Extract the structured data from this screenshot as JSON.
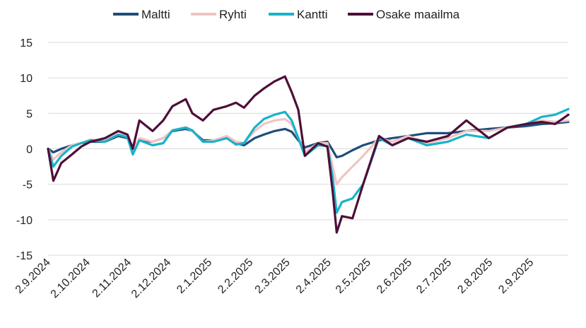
{
  "chart_data": {
    "type": "line",
    "title": "",
    "xlabel": "",
    "ylabel": "",
    "ylim": [
      -15,
      15
    ],
    "y_ticks": [
      15,
      10,
      5,
      0,
      -5,
      -10,
      -15
    ],
    "y_tick_labels": [
      "15",
      "10",
      "5",
      "0",
      "-5",
      "-10",
      "-15"
    ],
    "x_tick_labels": [
      "2.9.2024",
      "2.10.2024",
      "2.11.2024",
      "2.12.2024",
      "2.1.2025",
      "2.2.2025",
      "2.3.2025",
      "2.4.2025",
      "2.5.2025",
      "2.6.2025",
      "2.7.2025",
      "2.8.2025",
      "2.9.2025"
    ],
    "x_range": [
      "2024-09-02",
      "2025-09-30"
    ],
    "grid": "horizontal",
    "legend_position": "top",
    "series": [
      {
        "name": "Maltti",
        "color": "#1f4e79",
        "points": [
          [
            "2024-09-02",
            0
          ],
          [
            "2024-09-06",
            -0.5
          ],
          [
            "2024-09-12",
            0
          ],
          [
            "2024-09-20",
            0.5
          ],
          [
            "2024-09-27",
            0.8
          ],
          [
            "2024-10-04",
            1
          ],
          [
            "2024-10-15",
            1
          ],
          [
            "2024-10-25",
            1.8
          ],
          [
            "2024-11-01",
            1.5
          ],
          [
            "2024-11-05",
            0.3
          ],
          [
            "2024-11-10",
            1.2
          ],
          [
            "2024-11-20",
            1.0
          ],
          [
            "2024-11-28",
            1.5
          ],
          [
            "2024-12-05",
            2.5
          ],
          [
            "2024-12-15",
            2.8
          ],
          [
            "2024-12-20",
            2.5
          ],
          [
            "2024-12-28",
            1.2
          ],
          [
            "2025-01-05",
            1.2
          ],
          [
            "2025-01-15",
            1.5
          ],
          [
            "2025-01-22",
            0.8
          ],
          [
            "2025-01-28",
            0.5
          ],
          [
            "2025-02-05",
            1.5
          ],
          [
            "2025-02-12",
            2.0
          ],
          [
            "2025-02-20",
            2.5
          ],
          [
            "2025-02-28",
            2.8
          ],
          [
            "2025-03-05",
            2.4
          ],
          [
            "2025-03-10",
            1.2
          ],
          [
            "2025-03-15",
            0.2
          ],
          [
            "2025-03-25",
            0.8
          ],
          [
            "2025-04-01",
            1.0
          ],
          [
            "2025-04-05",
            -0.2
          ],
          [
            "2025-04-08",
            -1.2
          ],
          [
            "2025-04-12",
            -1.0
          ],
          [
            "2025-04-20",
            -0.2
          ],
          [
            "2025-04-28",
            0.5
          ],
          [
            "2025-05-10",
            1.2
          ],
          [
            "2025-05-20",
            1.5
          ],
          [
            "2025-06-01",
            1.8
          ],
          [
            "2025-06-15",
            2.2
          ],
          [
            "2025-07-01",
            2.2
          ],
          [
            "2025-07-15",
            2.5
          ],
          [
            "2025-08-01",
            2.8
          ],
          [
            "2025-08-15",
            3.0
          ],
          [
            "2025-08-29",
            3.2
          ],
          [
            "2025-09-10",
            3.5
          ],
          [
            "2025-09-20",
            3.6
          ],
          [
            "2025-09-30",
            3.8
          ]
        ]
      },
      {
        "name": "Ryhti",
        "color": "#f2c4c4",
        "points": [
          [
            "2024-09-02",
            0
          ],
          [
            "2024-09-06",
            -1.5
          ],
          [
            "2024-09-12",
            -0.5
          ],
          [
            "2024-09-20",
            0.5
          ],
          [
            "2024-09-27",
            0.8
          ],
          [
            "2024-10-04",
            1.3
          ],
          [
            "2024-10-15",
            1.2
          ],
          [
            "2024-10-25",
            2.0
          ],
          [
            "2024-11-01",
            1.8
          ],
          [
            "2024-11-05",
            -0.2
          ],
          [
            "2024-11-10",
            1.5
          ],
          [
            "2024-11-20",
            1.0
          ],
          [
            "2024-11-28",
            1.5
          ],
          [
            "2024-12-05",
            2.6
          ],
          [
            "2024-12-15",
            3.0
          ],
          [
            "2024-12-20",
            2.5
          ],
          [
            "2024-12-28",
            1.0
          ],
          [
            "2025-01-05",
            1.2
          ],
          [
            "2025-01-15",
            1.8
          ],
          [
            "2025-01-22",
            1.0
          ],
          [
            "2025-01-28",
            0.8
          ],
          [
            "2025-02-05",
            2.5
          ],
          [
            "2025-02-12",
            3.5
          ],
          [
            "2025-02-20",
            4.0
          ],
          [
            "2025-02-28",
            4.2
          ],
          [
            "2025-03-05",
            3.5
          ],
          [
            "2025-03-10",
            1.5
          ],
          [
            "2025-03-15",
            -0.5
          ],
          [
            "2025-03-25",
            0.8
          ],
          [
            "2025-04-01",
            0.8
          ],
          [
            "2025-04-05",
            -2.5
          ],
          [
            "2025-04-08",
            -5.0
          ],
          [
            "2025-04-12",
            -4.0
          ],
          [
            "2025-04-20",
            -2.5
          ],
          [
            "2025-04-28",
            -1.0
          ],
          [
            "2025-05-10",
            1.5
          ],
          [
            "2025-05-20",
            1.0
          ],
          [
            "2025-06-01",
            1.8
          ],
          [
            "2025-06-15",
            0.8
          ],
          [
            "2025-07-01",
            1.5
          ],
          [
            "2025-07-15",
            2.5
          ],
          [
            "2025-08-01",
            2.5
          ],
          [
            "2025-08-15",
            3.0
          ],
          [
            "2025-08-29",
            3.5
          ],
          [
            "2025-09-10",
            4.0
          ],
          [
            "2025-09-20",
            3.8
          ],
          [
            "2025-09-30",
            4.0
          ]
        ]
      },
      {
        "name": "Kantti",
        "color": "#18b3c9",
        "points": [
          [
            "2024-09-02",
            0
          ],
          [
            "2024-09-06",
            -2.5
          ],
          [
            "2024-09-12",
            -1.0
          ],
          [
            "2024-09-20",
            0.3
          ],
          [
            "2024-09-27",
            0.8
          ],
          [
            "2024-10-04",
            1.2
          ],
          [
            "2024-10-15",
            1.0
          ],
          [
            "2024-10-25",
            2.0
          ],
          [
            "2024-11-01",
            1.6
          ],
          [
            "2024-11-05",
            -0.8
          ],
          [
            "2024-11-10",
            1.2
          ],
          [
            "2024-11-20",
            0.5
          ],
          [
            "2024-11-28",
            0.8
          ],
          [
            "2024-12-05",
            2.6
          ],
          [
            "2024-12-15",
            3.0
          ],
          [
            "2024-12-20",
            2.6
          ],
          [
            "2024-12-28",
            1.0
          ],
          [
            "2025-01-05",
            1.0
          ],
          [
            "2025-01-15",
            1.5
          ],
          [
            "2025-01-22",
            0.6
          ],
          [
            "2025-01-28",
            0.8
          ],
          [
            "2025-02-05",
            3.0
          ],
          [
            "2025-02-12",
            4.2
          ],
          [
            "2025-02-20",
            4.8
          ],
          [
            "2025-02-28",
            5.2
          ],
          [
            "2025-03-05",
            4.0
          ],
          [
            "2025-03-10",
            1.5
          ],
          [
            "2025-03-15",
            -1.0
          ],
          [
            "2025-03-25",
            0.5
          ],
          [
            "2025-04-01",
            0.4
          ],
          [
            "2025-04-05",
            -4.0
          ],
          [
            "2025-04-08",
            -9.0
          ],
          [
            "2025-04-12",
            -7.5
          ],
          [
            "2025-04-20",
            -7.0
          ],
          [
            "2025-04-28",
            -5.0
          ],
          [
            "2025-05-10",
            1.5
          ],
          [
            "2025-05-20",
            0.5
          ],
          [
            "2025-06-01",
            1.5
          ],
          [
            "2025-06-15",
            0.5
          ],
          [
            "2025-07-01",
            1.0
          ],
          [
            "2025-07-15",
            2.0
          ],
          [
            "2025-08-01",
            1.5
          ],
          [
            "2025-08-15",
            3.0
          ],
          [
            "2025-08-29",
            3.5
          ],
          [
            "2025-09-10",
            4.5
          ],
          [
            "2025-09-20",
            4.8
          ],
          [
            "2025-09-30",
            5.6
          ]
        ]
      },
      {
        "name": "Osake maailma",
        "color": "#4d0f38",
        "points": [
          [
            "2024-09-02",
            0
          ],
          [
            "2024-09-06",
            -4.5
          ],
          [
            "2024-09-12",
            -2.0
          ],
          [
            "2024-09-20",
            -0.8
          ],
          [
            "2024-09-27",
            0.3
          ],
          [
            "2024-10-04",
            1.0
          ],
          [
            "2024-10-15",
            1.5
          ],
          [
            "2024-10-25",
            2.5
          ],
          [
            "2024-11-01",
            2.0
          ],
          [
            "2024-11-05",
            0.0
          ],
          [
            "2024-11-10",
            4.0
          ],
          [
            "2024-11-20",
            2.5
          ],
          [
            "2024-11-28",
            4.0
          ],
          [
            "2024-12-05",
            6.0
          ],
          [
            "2024-12-15",
            7.0
          ],
          [
            "2024-12-20",
            5.0
          ],
          [
            "2024-12-28",
            4.0
          ],
          [
            "2025-01-05",
            5.5
          ],
          [
            "2025-01-15",
            6.0
          ],
          [
            "2025-01-22",
            6.5
          ],
          [
            "2025-01-28",
            5.8
          ],
          [
            "2025-02-05",
            7.5
          ],
          [
            "2025-02-12",
            8.5
          ],
          [
            "2025-02-20",
            9.5
          ],
          [
            "2025-02-28",
            10.2
          ],
          [
            "2025-03-05",
            8.0
          ],
          [
            "2025-03-10",
            5.5
          ],
          [
            "2025-03-15",
            -1.0
          ],
          [
            "2025-03-25",
            0.8
          ],
          [
            "2025-04-01",
            0.3
          ],
          [
            "2025-04-05",
            -6.0
          ],
          [
            "2025-04-08",
            -11.8
          ],
          [
            "2025-04-12",
            -9.5
          ],
          [
            "2025-04-20",
            -9.8
          ],
          [
            "2025-04-28",
            -5.0
          ],
          [
            "2025-05-10",
            1.8
          ],
          [
            "2025-05-20",
            0.5
          ],
          [
            "2025-06-01",
            1.5
          ],
          [
            "2025-06-15",
            1.0
          ],
          [
            "2025-07-01",
            1.8
          ],
          [
            "2025-07-15",
            4.0
          ],
          [
            "2025-08-01",
            1.5
          ],
          [
            "2025-08-15",
            3.0
          ],
          [
            "2025-08-29",
            3.5
          ],
          [
            "2025-09-10",
            3.8
          ],
          [
            "2025-09-20",
            3.5
          ],
          [
            "2025-09-30",
            4.8
          ]
        ]
      }
    ]
  }
}
